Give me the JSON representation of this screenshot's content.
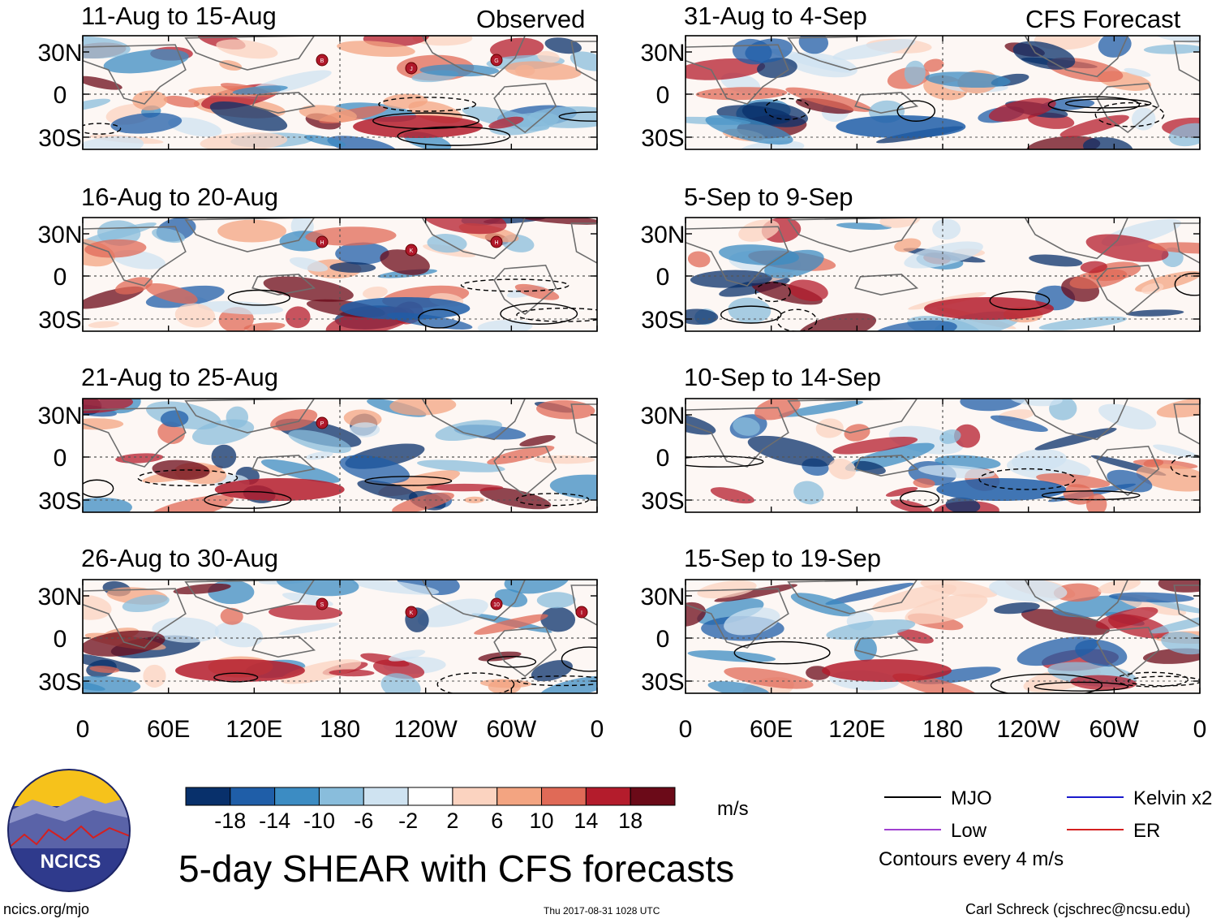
{
  "chart_data": {
    "type": "heatmap",
    "title": "5-day SHEAR with CFS forecasts",
    "units": "m/s",
    "colorbar": {
      "tick_labels": [
        "-18",
        "-14",
        "-10",
        "-6",
        "-2",
        "2",
        "6",
        "10",
        "14",
        "18"
      ],
      "colors": [
        "#08306b",
        "#1f5ea8",
        "#3c8cc3",
        "#89bddc",
        "#cfe3f1",
        "#ffffff",
        "#fbd3c0",
        "#f3a481",
        "#e06a57",
        "#b41c2c",
        "#6b0a18"
      ]
    },
    "lat_tick_labels": [
      "30N",
      "0",
      "30S"
    ],
    "lon_tick_labels": [
      "0",
      "60E",
      "120E",
      "180",
      "120W",
      "60W",
      "0"
    ],
    "columns": [
      {
        "label": "Observed",
        "panels": [
          {
            "period": "11-Aug to 15-Aug",
            "storms": [
              "B",
              "J",
              "G"
            ]
          },
          {
            "period": "16-Aug to 20-Aug",
            "storms": [
              "H",
              "K",
              "H"
            ]
          },
          {
            "period": "21-Aug to 25-Aug",
            "storms": [
              "P"
            ]
          },
          {
            "period": "26-Aug to 30-Aug",
            "storms": [
              "S",
              "K",
              "10",
              "I"
            ]
          }
        ]
      },
      {
        "label": "CFS Forecast",
        "panels": [
          {
            "period": "31-Aug to 4-Sep",
            "storms": []
          },
          {
            "period": "5-Sep to 9-Sep",
            "storms": []
          },
          {
            "period": "10-Sep to 14-Sep",
            "storms": []
          },
          {
            "period": "15-Sep to 19-Sep",
            "storms": []
          }
        ]
      }
    ],
    "contour_legend": [
      {
        "label": "MJO",
        "color": "#000000"
      },
      {
        "label": "Kelvin x2",
        "color": "#1a1acc"
      },
      {
        "label": "Low",
        "color": "#a040d0"
      },
      {
        "label": "ER",
        "color": "#d42020"
      }
    ],
    "contour_note": "Contours every 4 m/s"
  },
  "footer": {
    "logo_text": "NCICS",
    "site": "ncics.org/mjo",
    "timestamp": "Thu 2017-08-31 1028 UTC",
    "author": "Carl Schreck (cjschrec@ncsu.edu)"
  }
}
